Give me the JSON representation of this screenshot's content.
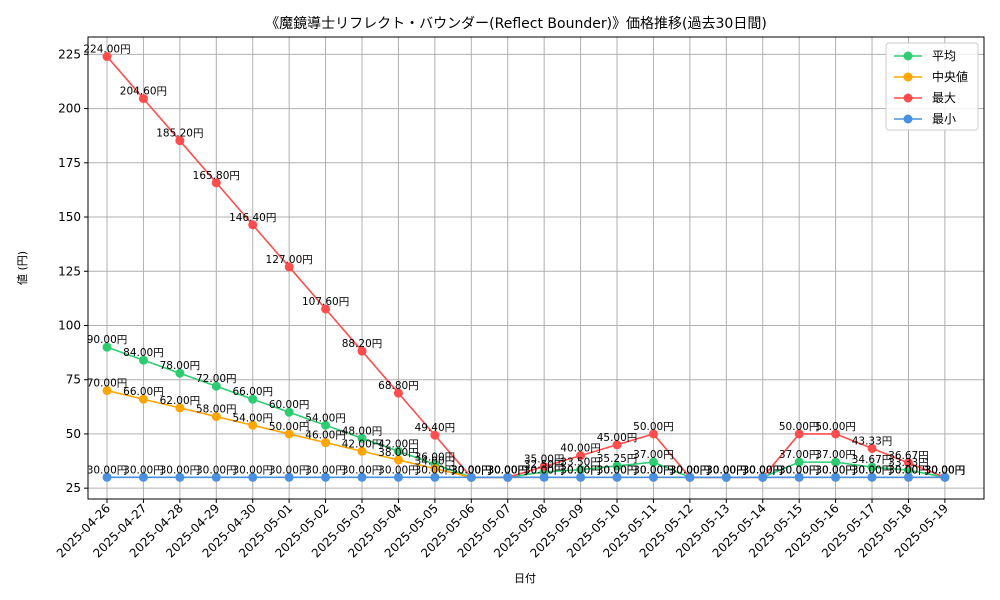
{
  "chart_data": {
    "type": "line",
    "title": "《魔鏡導士リフレクト・バウンダー(Reflect Bounder)》価格推移(過去30日間)",
    "xlabel": "日付",
    "ylabel": "値 (円)",
    "ylim": [
      20,
      233
    ],
    "yticks": [
      25,
      50,
      75,
      100,
      125,
      150,
      175,
      200,
      225
    ],
    "grid": true,
    "legend_position": "top-right",
    "value_suffix": "円",
    "categories": [
      "2025-04-26",
      "2025-04-27",
      "2025-04-28",
      "2025-04-29",
      "2025-04-30",
      "2025-05-01",
      "2025-05-02",
      "2025-05-03",
      "2025-05-04",
      "2025-05-05",
      "2025-05-06",
      "2025-05-07",
      "2025-05-08",
      "2025-05-09",
      "2025-05-10",
      "2025-05-11",
      "2025-05-12",
      "2025-05-13",
      "2025-05-14",
      "2025-05-15",
      "2025-05-16",
      "2025-05-17",
      "2025-05-18",
      "2025-05-19"
    ],
    "series": [
      {
        "name": "平均",
        "color": "#2ecc71",
        "values": [
          90.0,
          84.0,
          78.0,
          72.0,
          66.0,
          60.0,
          54.0,
          48.0,
          42.0,
          36.0,
          30.0,
          30.0,
          32.5,
          33.5,
          35.25,
          37.0,
          30.0,
          30.0,
          30.0,
          37.0,
          37.0,
          34.67,
          33.33,
          30.0
        ],
        "labels": [
          "90.00円",
          "84.00円",
          "78.00円",
          "72.00円",
          "66.00円",
          "60.00円",
          "54.00円",
          "48.00円",
          "42.00円",
          "36.00円",
          "30.00円",
          "30.00円",
          "32.50円",
          "33.50円",
          "35.25円",
          "37.00円",
          "30.00円",
          "30.00円",
          "30.00円",
          "37.00円",
          "37.00円",
          "34.67円",
          "33.33円",
          "30.00円"
        ]
      },
      {
        "name": "中央値",
        "color": "#ffa500",
        "values": [
          70.0,
          66.0,
          62.0,
          58.0,
          54.0,
          50.0,
          46.0,
          42.0,
          38.0,
          34.0,
          30.0,
          30.0,
          30.0,
          30.0,
          30.0,
          30.0,
          30.0,
          30.0,
          30.0,
          30.0,
          30.0,
          30.0,
          30.0,
          30.0
        ],
        "labels": [
          "70.00円",
          "66.00円",
          "62.00円",
          "58.00円",
          "54.00円",
          "50.00円",
          "46.00円",
          "42.00円",
          "38.00円",
          "34.00円",
          "30.00円",
          "30.00円",
          "30.00円",
          "30.00円",
          "30.00円",
          "30.00円",
          "30.00円",
          "30.00円",
          "30.00円",
          "30.00円",
          "30.00円",
          "30.00円",
          "30.00円",
          "30.00円"
        ]
      },
      {
        "name": "最大",
        "color": "#ff4d4d",
        "values": [
          224.0,
          204.6,
          185.2,
          165.8,
          146.4,
          127.0,
          107.6,
          88.2,
          68.8,
          49.4,
          30.0,
          30.0,
          35.0,
          40.0,
          45.0,
          50.0,
          30.0,
          30.0,
          30.0,
          50.0,
          50.0,
          43.33,
          36.67,
          30.0
        ],
        "labels": [
          "224.00円",
          "204.60円",
          "185.20円",
          "165.80円",
          "146.40円",
          "127.00円",
          "107.60円",
          "88.20円",
          "68.80円",
          "49.40円",
          "30.00円",
          "30.00円",
          "35.00円",
          "40.00円",
          "45.00円",
          "50.00円",
          "30.00円",
          "30.00円",
          "30.00円",
          "50.00円",
          "50.00円",
          "43.33円",
          "36.67円",
          "30.00円"
        ]
      },
      {
        "name": "最小",
        "color": "#4a90e2",
        "values": [
          30.0,
          30.0,
          30.0,
          30.0,
          30.0,
          30.0,
          30.0,
          30.0,
          30.0,
          30.0,
          30.0,
          30.0,
          30.0,
          30.0,
          30.0,
          30.0,
          30.0,
          30.0,
          30.0,
          30.0,
          30.0,
          30.0,
          30.0,
          30.0
        ],
        "labels": [
          "30.00円",
          "30.00円",
          "30.00円",
          "30.00円",
          "30.00円",
          "30.00円",
          "30.00円",
          "30.00円",
          "30.00円",
          "30.00円",
          "30.00円",
          "30.00円",
          "30.00円",
          "30.00円",
          "30.00円",
          "30.00円",
          "30.00円",
          "30.00円",
          "30.00円",
          "30.00円",
          "30.00円",
          "30.00円",
          "30.00円",
          "30.00円"
        ]
      }
    ]
  }
}
